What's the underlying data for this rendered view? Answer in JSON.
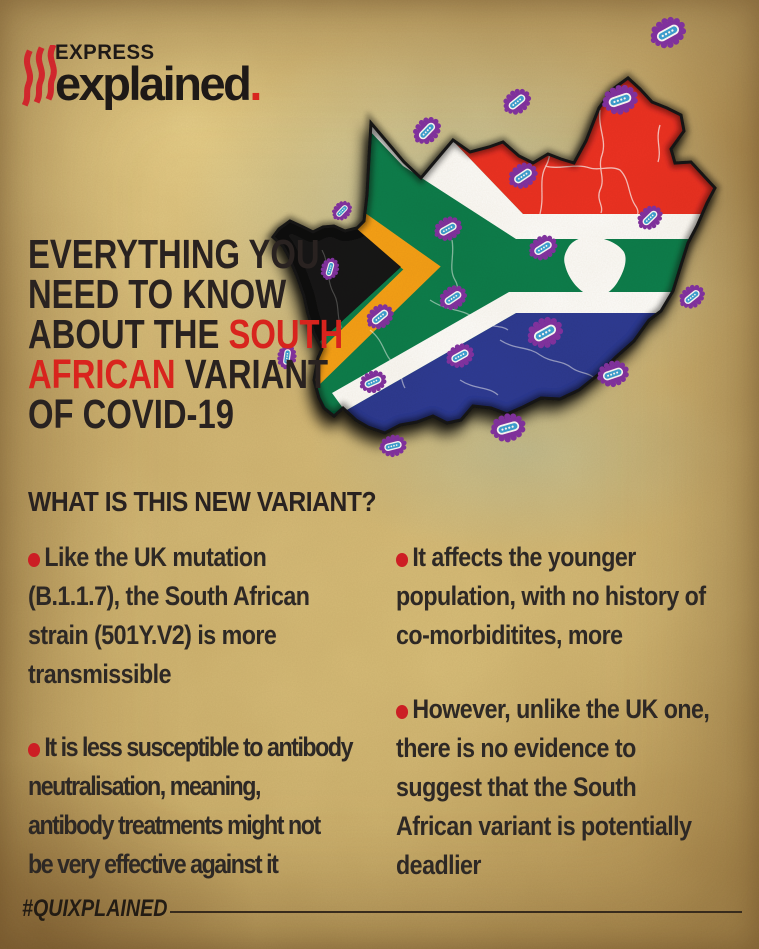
{
  "logo": {
    "brand": "EXPRESS",
    "series": "explained",
    "period": "."
  },
  "headline": {
    "line1": "EVERYTHING YOU",
    "line2": "NEED TO KNOW",
    "line3_dark": "ABOUT THE ",
    "line3_red": "SOUTH",
    "line4_red": "AFRICAN",
    "line4_dark": " VARIANT",
    "line5": "OF COVID-19"
  },
  "section_heading": "WHAT IS THIS NEW VARIANT?",
  "bullets": {
    "left": [
      {
        "lines": [
          "Like the UK mutation",
          "(B.1.1.7), the South African",
          "strain (501Y.V2) is more",
          "transmissible"
        ]
      },
      {
        "lines": [
          "It is less susceptible to antibody",
          "neutralisation, meaning,",
          "antibody treatments might not",
          "be very effective against it"
        ]
      }
    ],
    "right": [
      {
        "lines": [
          "It affects the younger",
          "population, with no history of",
          "co-morbiditites, more"
        ]
      },
      {
        "lines": [
          "However, unlike the UK one,",
          "there is no evidence to",
          "suggest that the South",
          "African variant is potentially",
          "deadlier"
        ]
      }
    ]
  },
  "footer": {
    "hashtag": "#QUIXPLAINED"
  },
  "colors": {
    "accent_red": "#e02720",
    "text_dark": "#2a2322",
    "background_tan": "#d3b878",
    "flag_red": "#ee3124",
    "flag_green": "#0b7f4d",
    "flag_blue": "#2d3a96",
    "flag_yellow": "#f7a219",
    "flag_black": "#121212",
    "virus_purple": "#8433a6",
    "virus_blue": "#3fa3da"
  },
  "icons": {
    "virus": "coronavirus-variant-icon",
    "brand_mark": "indian-express-flame-icon",
    "map": "south-africa-flag-map"
  }
}
